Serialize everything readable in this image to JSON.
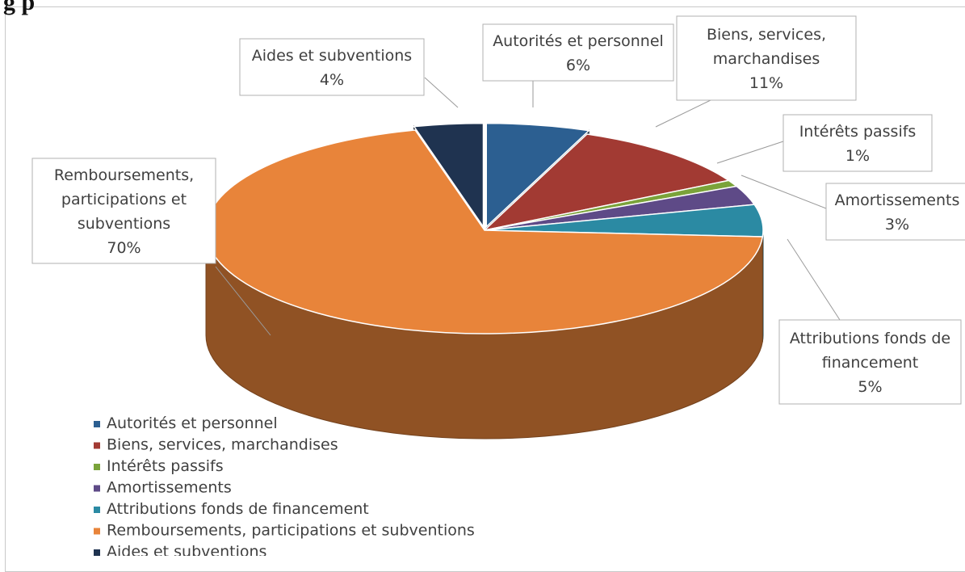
{
  "chart_data": {
    "type": "pie",
    "title": "",
    "heading_fragment": "g p",
    "slices": [
      {
        "label": "Autorités et personnel",
        "callout": [
          "Autorités et personnel"
        ],
        "value": 6,
        "value_label": "6%",
        "color": "#2C5F91"
      },
      {
        "label": "Biens, services, marchandises",
        "callout": [
          "Biens, services,",
          "marchandises"
        ],
        "value": 11,
        "value_label": "11%",
        "color": "#A23A33"
      },
      {
        "label": "Intérêts passifs",
        "callout": [
          "Intérêts passifs"
        ],
        "value": 1,
        "value_label": "1%",
        "color": "#7AA33A"
      },
      {
        "label": "Amortissements",
        "callout": [
          "Amortissements"
        ],
        "value": 3,
        "value_label": "3%",
        "color": "#5E4A87"
      },
      {
        "label": "Attributions fonds de financement",
        "callout": [
          "Attributions fonds de",
          "financement"
        ],
        "value": 5,
        "value_label": "5%",
        "color": "#2B8AA3"
      },
      {
        "label": "Remboursements, participations et subventions",
        "callout": [
          "Remboursements,",
          "participations et",
          "subventions"
        ],
        "value": 70,
        "value_label": "70%",
        "color": "#E8843A"
      },
      {
        "label": "Aides et subventions",
        "callout": [
          "Aides et subventions"
        ],
        "value": 4,
        "value_label": "4%",
        "color": "#1F3350"
      }
    ],
    "legend_position": "bottom-left"
  }
}
